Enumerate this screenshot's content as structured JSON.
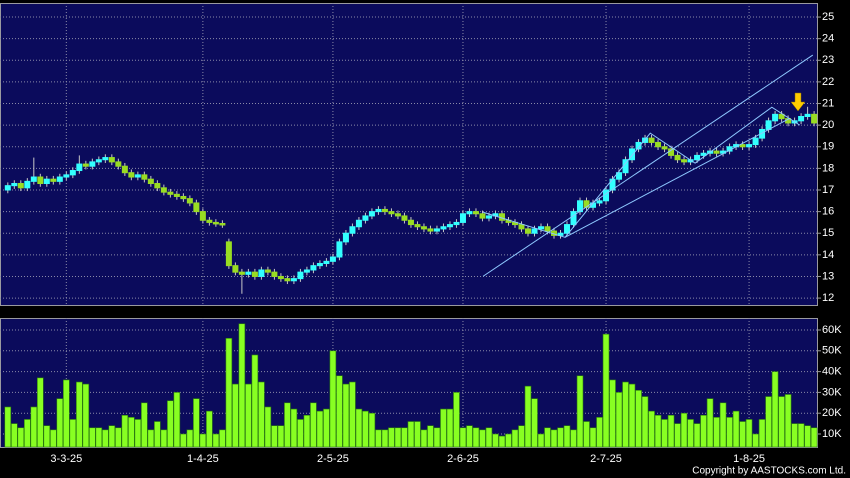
{
  "chart_data": [
    {
      "type": "candlestick",
      "xlim": [
        -1.2,
        124.6
      ],
      "ylim": [
        11.68,
        25.65
      ],
      "yticks": [
        12,
        13,
        14,
        15,
        16,
        17,
        18,
        19,
        20,
        21,
        22,
        23,
        24,
        25
      ],
      "grid": true,
      "up_color": "#33ffff",
      "down_color": "#99dd22",
      "open": [
        17.0,
        17.2,
        17.3,
        17.1,
        17.4,
        17.6,
        17.3,
        17.5,
        17.4,
        17.6,
        17.7,
        17.9,
        18.2,
        18.1,
        18.3,
        18.4,
        18.5,
        18.3,
        18.1,
        17.8,
        17.6,
        17.7,
        17.5,
        17.3,
        17.1,
        16.9,
        16.8,
        16.7,
        16.6,
        16.4,
        16.0,
        15.6,
        15.5,
        15.45,
        14.6,
        13.5,
        13.2,
        13.1,
        13.2,
        13.0,
        13.3,
        13.2,
        13.0,
        12.9,
        12.8,
        12.9,
        13.2,
        13.3,
        13.5,
        13.6,
        13.7,
        13.9,
        14.6,
        15.0,
        15.3,
        15.6,
        15.8,
        16.0,
        16.1,
        16.0,
        15.9,
        15.8,
        15.6,
        15.4,
        15.3,
        15.2,
        15.1,
        15.2,
        15.3,
        15.4,
        15.5,
        15.9,
        16.0,
        15.9,
        15.7,
        15.8,
        15.9,
        15.6,
        15.5,
        15.4,
        15.2,
        15.0,
        15.2,
        15.3,
        15.1,
        14.9,
        15.0,
        15.4,
        16.0,
        16.5,
        16.2,
        16.4,
        16.5,
        17.0,
        17.5,
        17.8,
        18.4,
        18.9,
        19.2,
        19.4,
        19.2,
        19.0,
        18.9,
        18.6,
        18.4,
        18.3,
        18.4,
        18.6,
        18.7,
        18.8,
        18.7,
        18.8,
        19.0,
        19.1,
        19.0,
        19.1,
        19.4,
        19.8,
        20.2,
        20.5,
        20.3,
        20.1,
        20.2,
        20.4,
        20.5
      ],
      "high": [
        17.35,
        17.45,
        17.45,
        17.55,
        18.5,
        17.75,
        17.65,
        17.65,
        17.75,
        17.85,
        18.05,
        18.6,
        18.35,
        18.45,
        18.55,
        18.65,
        18.65,
        18.45,
        18.25,
        17.95,
        17.85,
        17.85,
        17.65,
        17.45,
        17.25,
        17.05,
        16.95,
        16.85,
        16.75,
        16.55,
        16.15,
        15.75,
        15.65,
        15.6,
        14.75,
        13.65,
        13.35,
        13.35,
        13.35,
        13.45,
        13.45,
        13.35,
        13.15,
        13.05,
        13.05,
        13.35,
        13.45,
        13.65,
        13.75,
        13.85,
        14.05,
        14.75,
        15.15,
        15.45,
        15.75,
        15.95,
        16.15,
        16.25,
        16.25,
        16.15,
        16.05,
        15.95,
        15.75,
        15.55,
        15.45,
        15.35,
        15.35,
        15.45,
        15.55,
        15.65,
        16.05,
        16.15,
        16.15,
        16.05,
        15.95,
        16.05,
        16.05,
        15.75,
        15.65,
        15.55,
        15.35,
        15.35,
        15.45,
        15.45,
        15.25,
        15.15,
        15.55,
        16.15,
        16.65,
        16.65,
        16.55,
        16.65,
        17.15,
        17.65,
        17.95,
        18.55,
        19.05,
        19.35,
        19.55,
        19.55,
        19.35,
        19.15,
        19.05,
        18.75,
        18.55,
        18.55,
        18.75,
        18.85,
        18.95,
        18.95,
        18.95,
        19.15,
        19.25,
        19.25,
        19.25,
        19.55,
        19.95,
        20.35,
        20.65,
        20.65,
        20.45,
        20.35,
        20.55,
        20.85,
        20.65
      ],
      "low": [
        16.85,
        17.05,
        16.95,
        16.95,
        17.25,
        17.15,
        17.15,
        17.25,
        17.25,
        17.45,
        17.55,
        17.75,
        17.95,
        17.95,
        18.15,
        18.25,
        18.15,
        17.95,
        17.65,
        17.45,
        17.45,
        17.35,
        17.15,
        16.95,
        16.75,
        16.65,
        16.55,
        16.45,
        16.25,
        15.85,
        15.45,
        15.35,
        15.3,
        15.25,
        13.35,
        13.05,
        12.2,
        12.95,
        12.85,
        12.85,
        13.05,
        12.85,
        12.75,
        12.65,
        12.65,
        12.75,
        13.05,
        13.15,
        13.35,
        13.45,
        13.55,
        13.75,
        14.45,
        14.85,
        15.15,
        15.45,
        15.65,
        15.85,
        15.85,
        15.75,
        15.65,
        15.45,
        15.25,
        15.15,
        15.05,
        14.95,
        14.95,
        15.05,
        15.15,
        15.25,
        15.35,
        15.75,
        15.75,
        15.55,
        15.55,
        15.65,
        15.45,
        15.35,
        15.25,
        15.05,
        14.85,
        14.85,
        15.05,
        14.95,
        14.75,
        14.75,
        14.85,
        15.25,
        15.85,
        16.05,
        16.05,
        16.25,
        16.35,
        16.85,
        17.35,
        17.65,
        18.25,
        18.75,
        19.05,
        19.05,
        18.85,
        18.75,
        18.45,
        18.25,
        18.15,
        18.15,
        18.25,
        18.45,
        18.55,
        18.55,
        18.55,
        18.65,
        18.85,
        18.85,
        18.85,
        18.95,
        19.25,
        19.65,
        20.05,
        20.15,
        19.95,
        19.95,
        20.05,
        20.25,
        19.95
      ],
      "close": [
        17.2,
        17.3,
        17.1,
        17.4,
        17.6,
        17.3,
        17.5,
        17.4,
        17.6,
        17.7,
        17.9,
        18.2,
        18.1,
        18.3,
        18.4,
        18.5,
        18.3,
        18.1,
        17.8,
        17.6,
        17.7,
        17.5,
        17.3,
        17.1,
        16.9,
        16.8,
        16.7,
        16.6,
        16.4,
        16.0,
        15.6,
        15.5,
        15.45,
        15.4,
        13.5,
        13.2,
        13.1,
        13.2,
        13.0,
        13.3,
        13.2,
        13.0,
        12.9,
        12.8,
        12.9,
        13.2,
        13.3,
        13.5,
        13.6,
        13.7,
        13.9,
        14.6,
        15.0,
        15.3,
        15.6,
        15.8,
        16.0,
        16.1,
        16.0,
        15.9,
        15.8,
        15.6,
        15.4,
        15.3,
        15.2,
        15.1,
        15.2,
        15.3,
        15.4,
        15.5,
        15.9,
        16.0,
        15.9,
        15.7,
        15.8,
        15.9,
        15.6,
        15.5,
        15.4,
        15.2,
        15.0,
        15.2,
        15.3,
        15.1,
        14.9,
        15.0,
        15.4,
        16.0,
        16.5,
        16.2,
        16.4,
        16.5,
        17.0,
        17.5,
        17.8,
        18.4,
        18.9,
        19.2,
        19.4,
        19.2,
        19.0,
        18.9,
        18.6,
        18.4,
        18.3,
        18.4,
        18.6,
        18.7,
        18.8,
        18.7,
        18.8,
        19.0,
        19.1,
        19.0,
        19.1,
        19.4,
        19.8,
        20.2,
        20.5,
        20.3,
        20.1,
        20.2,
        20.4,
        20.5,
        20.1
      ],
      "trend_lines": [
        {
          "x": [
            73.1,
            85.7,
            98.8,
            105.7,
            117.5,
            121.8
          ],
          "y": [
            15.97,
            14.81,
            19.63,
            18.24,
            20.83,
            20.0
          ]
        },
        {
          "x": [
            73.1,
            123.8
          ],
          "y": [
            13.01,
            23.24
          ]
        },
        {
          "x": [
            85.7,
            120.3
          ],
          "y": [
            14.81,
            20.32
          ]
        }
      ]
    },
    {
      "type": "bar",
      "xlim": [
        -1.2,
        124.6
      ],
      "ylim": [
        3750,
        65770
      ],
      "yticks": [
        {
          "value": 10000,
          "label": "10K"
        },
        {
          "value": 20000,
          "label": "20K"
        },
        {
          "value": 30000,
          "label": "30K"
        },
        {
          "value": 40000,
          "label": "40K"
        },
        {
          "value": 50000,
          "label": "50K"
        },
        {
          "value": 60000,
          "label": "60K"
        }
      ],
      "xticks": [
        {
          "value": 9,
          "label": "3-3-25"
        },
        {
          "value": 30,
          "label": "1-4-25"
        },
        {
          "value": 50,
          "label": "2-5-25"
        },
        {
          "value": 70,
          "label": "2-6-25"
        },
        {
          "value": 92,
          "label": "2-7-25"
        },
        {
          "value": 114,
          "label": "1-8-25"
        }
      ],
      "grid": true,
      "color": "#88ff22",
      "values": [
        23000,
        15000,
        13000,
        17000,
        23000,
        37000,
        14000,
        12000,
        27000,
        36000,
        17000,
        35000,
        34000,
        13000,
        13000,
        12000,
        14000,
        13000,
        19000,
        18000,
        17000,
        25000,
        12000,
        16000,
        12000,
        26000,
        30000,
        10000,
        12000,
        27000,
        10000,
        21000,
        10000,
        12000,
        56000,
        34000,
        63000,
        34000,
        48000,
        35000,
        23000,
        14000,
        14000,
        25000,
        22000,
        17000,
        19000,
        25000,
        21000,
        22000,
        50000,
        38000,
        34000,
        35000,
        22000,
        21000,
        20000,
        12000,
        12000,
        13000,
        13000,
        13000,
        16000,
        16000,
        12000,
        14000,
        13000,
        22000,
        22000,
        30000,
        13000,
        14000,
        13000,
        12000,
        13000,
        10000,
        9000,
        10000,
        12000,
        14000,
        33000,
        27000,
        10000,
        13000,
        12000,
        13000,
        14000,
        12000,
        38000,
        16000,
        13000,
        18000,
        58000,
        36000,
        30000,
        35000,
        34000,
        31000,
        28000,
        21000,
        19000,
        17000,
        19000,
        15000,
        20000,
        17000,
        15000,
        19000,
        27000,
        18000,
        25000,
        18000,
        21000,
        16000,
        17000,
        10000,
        17000,
        28000,
        40000,
        28000,
        29000,
        15000,
        15000,
        14000,
        13000
      ]
    }
  ],
  "copyright": "Copyright by AASTOCKS.com Ltd."
}
